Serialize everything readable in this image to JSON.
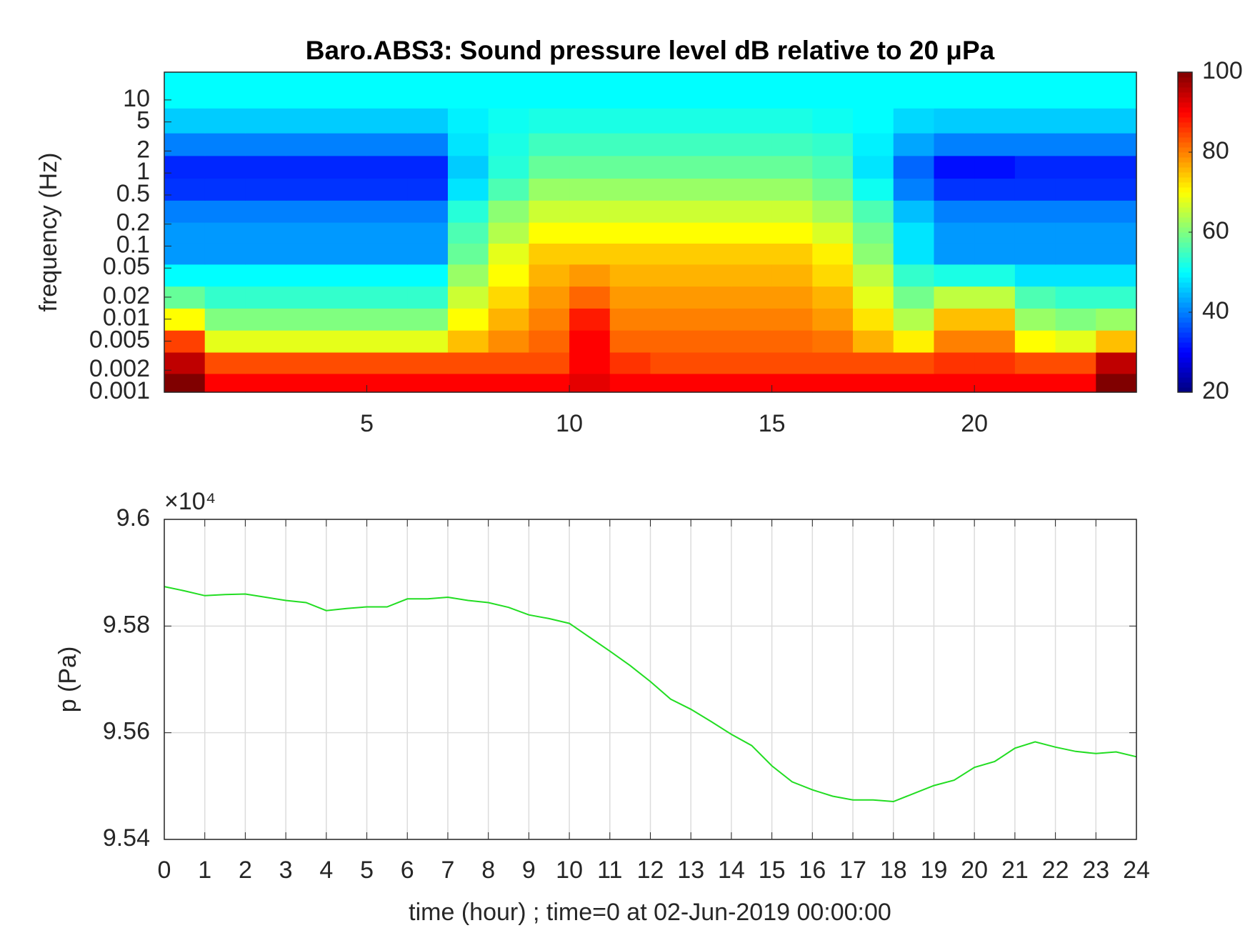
{
  "chart_data": [
    {
      "type": "heatmap",
      "title": "Baro.ABS3: Sound pressure level dB relative to 20 μPa",
      "ylabel": "frequency (Hz)",
      "colormap": "jet",
      "ylog": true,
      "xlim": [
        0,
        24
      ],
      "xticks": [
        5,
        10,
        15,
        20
      ],
      "ylim": [
        0.001,
        24
      ],
      "yticks": [
        0.001,
        0.002,
        0.005,
        0.01,
        0.02,
        0.05,
        0.1,
        0.2,
        0.5,
        1,
        2,
        5,
        10
      ],
      "clim": [
        20,
        100
      ],
      "cticks": [
        20,
        40,
        60,
        80,
        100
      ],
      "x": [
        0.5,
        1.5,
        2.5,
        3.5,
        4.5,
        5.5,
        6.5,
        7.5,
        8.5,
        9.5,
        10.5,
        11.5,
        12.5,
        13.5,
        14.5,
        15.5,
        16.5,
        17.5,
        18.5,
        19.5,
        20.5,
        21.5,
        22.5,
        23.5
      ],
      "y": [
        0.0013,
        0.0025,
        0.005,
        0.01,
        0.02,
        0.04,
        0.08,
        0.15,
        0.3,
        0.6,
        1.2,
        2.5,
        5,
        12
      ],
      "z": [
        [
          100,
          90,
          90,
          90,
          90,
          90,
          90,
          90,
          90,
          90,
          92,
          90,
          90,
          90,
          90,
          90,
          90,
          90,
          90,
          90,
          90,
          90,
          90,
          100
        ],
        [
          95,
          84,
          84,
          84,
          84,
          84,
          84,
          84,
          84,
          84,
          90,
          86,
          84,
          84,
          84,
          84,
          84,
          84,
          84,
          86,
          86,
          84,
          84,
          95
        ],
        [
          85,
          68,
          68,
          68,
          68,
          68,
          68,
          75,
          79,
          82,
          90,
          82,
          82,
          82,
          82,
          82,
          81,
          76,
          71,
          80,
          80,
          70,
          68,
          75
        ],
        [
          70,
          60,
          60,
          60,
          60,
          60,
          60,
          70,
          76,
          80,
          88,
          80,
          80,
          80,
          80,
          80,
          78,
          72,
          64,
          75,
          75,
          62,
          60,
          62
        ],
        [
          58,
          54,
          54,
          54,
          54,
          54,
          54,
          66,
          73,
          78,
          82,
          78,
          78,
          78,
          78,
          78,
          76,
          68,
          59,
          65,
          65,
          56,
          54,
          54
        ],
        [
          50,
          50,
          50,
          50,
          50,
          50,
          50,
          62,
          70,
          76,
          78,
          76,
          76,
          76,
          76,
          76,
          73,
          65,
          54,
          52,
          52,
          48,
          48,
          48
        ],
        [
          42,
          42,
          42,
          42,
          42,
          42,
          42,
          58,
          68,
          74,
          74,
          74,
          74,
          74,
          74,
          74,
          71,
          61,
          48,
          42,
          42,
          42,
          42,
          42
        ],
        [
          42,
          42,
          42,
          42,
          42,
          42,
          42,
          56,
          64,
          70,
          70,
          70,
          70,
          70,
          70,
          70,
          67,
          59,
          48,
          42,
          42,
          42,
          42,
          42
        ],
        [
          40,
          40,
          40,
          40,
          40,
          40,
          40,
          53,
          61,
          66,
          66,
          66,
          66,
          66,
          66,
          66,
          63,
          56,
          45,
          40,
          40,
          40,
          40,
          40
        ],
        [
          34,
          34,
          34,
          34,
          34,
          34,
          34,
          48,
          56,
          62,
          62,
          62,
          62,
          62,
          62,
          62,
          59,
          51,
          40,
          34,
          34,
          34,
          34,
          34
        ],
        [
          33,
          33,
          33,
          33,
          33,
          33,
          33,
          46,
          53,
          58,
          58,
          58,
          58,
          58,
          58,
          58,
          56,
          48,
          38,
          31,
          31,
          33,
          33,
          33
        ],
        [
          40,
          40,
          40,
          40,
          40,
          40,
          40,
          48,
          52,
          55,
          55,
          55,
          55,
          55,
          55,
          55,
          54,
          49,
          43,
          40,
          40,
          40,
          40,
          40
        ],
        [
          46,
          46,
          46,
          46,
          46,
          46,
          46,
          49,
          51,
          52,
          52,
          52,
          52,
          52,
          52,
          52,
          51,
          50,
          47,
          46,
          46,
          46,
          46,
          46
        ],
        [
          50,
          50,
          50,
          50,
          50,
          50,
          50,
          50,
          50,
          50,
          50,
          50,
          50,
          50,
          50,
          50,
          50,
          50,
          50,
          50,
          50,
          50,
          50,
          50
        ]
      ]
    },
    {
      "type": "line",
      "xlabel": "time (hour) ; time=0 at 02-Jun-2019 00:00:00",
      "ylabel": "p (Pa)",
      "y_multiplier": "×10⁴",
      "grid": true,
      "xlim": [
        0,
        24
      ],
      "xticks": [
        0,
        1,
        2,
        3,
        4,
        5,
        6,
        7,
        8,
        9,
        10,
        11,
        12,
        13,
        14,
        15,
        16,
        17,
        18,
        19,
        20,
        21,
        22,
        23,
        24
      ],
      "ylim": [
        95400,
        96000
      ],
      "yticks": [
        {
          "value": 95400,
          "label": "9.54"
        },
        {
          "value": 95600,
          "label": "9.56"
        },
        {
          "value": 95800,
          "label": "9.58"
        },
        {
          "value": 96000,
          "label": "9.6"
        }
      ],
      "x": [
        0,
        0.5,
        1,
        1.5,
        2,
        2.5,
        3,
        3.5,
        4,
        4.5,
        5,
        5.5,
        6,
        6.5,
        7,
        7.5,
        8,
        8.5,
        9,
        9.5,
        10,
        10.5,
        11,
        11.5,
        12,
        12.5,
        13,
        13.5,
        14,
        14.5,
        15,
        15.5,
        16,
        16.5,
        17,
        17.5,
        18,
        18.5,
        19,
        19.5,
        20,
        20.5,
        21,
        21.5,
        22,
        22.5,
        23,
        23.5,
        24
      ],
      "series": [
        {
          "color": "#22dd22",
          "values": [
            95874,
            95866,
            95857,
            95859,
            95860,
            95854,
            95848,
            95844,
            95829,
            95833,
            95836,
            95836,
            95851,
            95851,
            95854,
            95848,
            95844,
            95835,
            95821,
            95814,
            95805,
            95779,
            95753,
            95726,
            95696,
            95663,
            95644,
            95621,
            95597,
            95576,
            95538,
            95508,
            95493,
            95481,
            95474,
            95474,
            95471,
            95486,
            95501,
            95511,
            95535,
            95546,
            95571,
            95583,
            95573,
            95565,
            95561,
            95564,
            95555
          ]
        }
      ]
    }
  ]
}
